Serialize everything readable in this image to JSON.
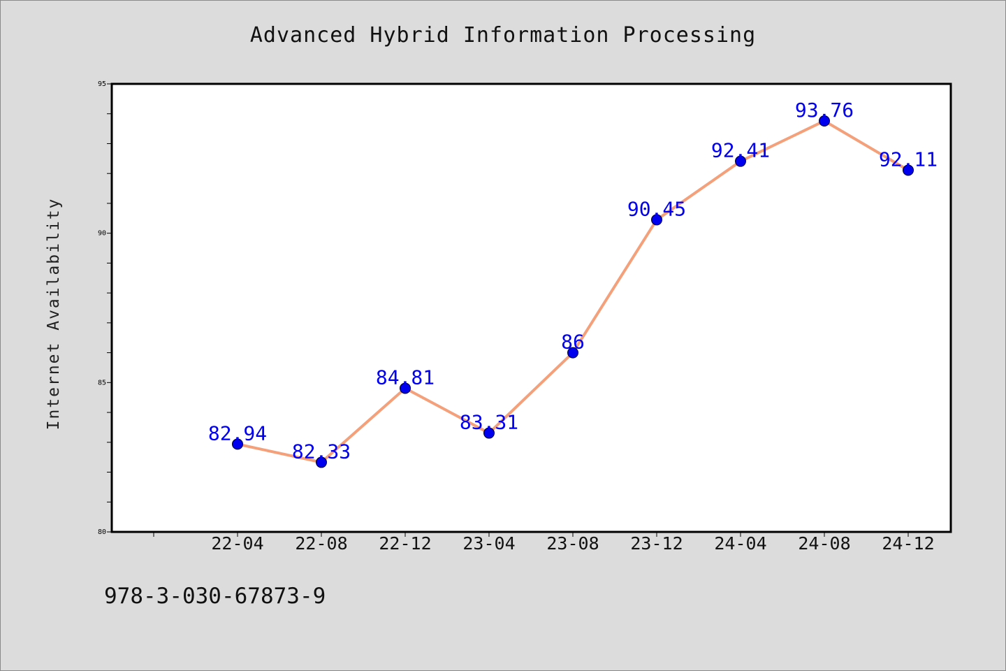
{
  "chart_data": {
    "type": "line",
    "title": "Advanced Hybrid Information Processing",
    "xlabel": "",
    "ylabel": "Internet Availability",
    "categories": [
      "22-04",
      "22-08",
      "22-12",
      "23-04",
      "23-08",
      "23-12",
      "24-04",
      "24-08",
      "24-12"
    ],
    "series": [
      {
        "values": [
          82.94,
          82.33,
          84.81,
          83.31,
          86,
          90.45,
          92.41,
          93.76,
          92.11
        ]
      }
    ],
    "data_labels": [
      "82.94",
      "82.33",
      "84.81",
      "83.31",
      "86",
      "90.45",
      "92.41",
      "93.76",
      "92.11"
    ],
    "ylim": [
      80,
      95
    ],
    "y_ticks": [
      80,
      85,
      90,
      95
    ],
    "y_tick_labels": [
      "80",
      "85",
      "90",
      "95"
    ],
    "grid": false,
    "line_color": "#f4a07a",
    "marker_color": "#0000ee",
    "label_color": "#0000ee",
    "plot_background": "#ffffff",
    "page_background": "#dcdcdc"
  },
  "footer": {
    "isbn": "978-3-030-67873-9"
  }
}
